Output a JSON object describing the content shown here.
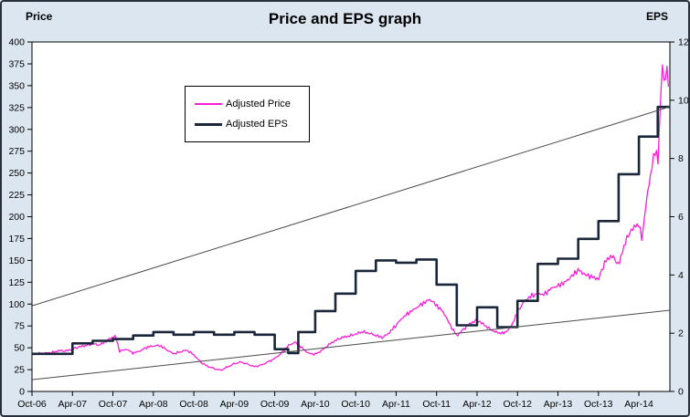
{
  "window": {
    "background": "#dce6f1",
    "plot_background": "#ffffff",
    "border_color": "#28303c"
  },
  "header": {
    "title": "Price and EPS graph",
    "left_axis_title": "Price",
    "right_axis_title": "EPS"
  },
  "legend": {
    "items": [
      {
        "label": "Adjusted Price",
        "color": "#fb1ed7",
        "thickness": 2
      },
      {
        "label": "Adjusted EPS",
        "color": "#1a2639",
        "thickness": 3
      }
    ]
  },
  "chart_data": {
    "type": "line",
    "title": "Price and EPS graph",
    "grid": false,
    "x_unit": "months since Oct-2006",
    "x_axis": {
      "labels": [
        "Oct-06",
        "Apr-07",
        "Oct-07",
        "Apr-08",
        "Oct-08",
        "Apr-09",
        "Oct-09",
        "Apr-10",
        "Oct-10",
        "Apr-11",
        "Oct-11",
        "Apr-12",
        "Oct-12",
        "Apr-13",
        "Oct-13",
        "Apr-14"
      ],
      "months_per_label": 6,
      "label_placement": "on-tick",
      "total_months": 94.6
    },
    "left_axis": {
      "title": "Price",
      "min": 0,
      "max": 400,
      "step": 25
    },
    "right_axis": {
      "title": "EPS",
      "min": 0,
      "max": 12,
      "step": 2
    },
    "series": [
      {
        "name": "Adjusted Price",
        "axis": "left",
        "style": "noisy-line",
        "color": "#fb1ed7",
        "width": 1.3,
        "noise_pct": 0.03,
        "points": [
          [
            0,
            42
          ],
          [
            1,
            43
          ],
          [
            2,
            44
          ],
          [
            3,
            45
          ],
          [
            4,
            47
          ],
          [
            5,
            46
          ],
          [
            6,
            48
          ],
          [
            7,
            51
          ],
          [
            8,
            53
          ],
          [
            9,
            55
          ],
          [
            10,
            53
          ],
          [
            11,
            57
          ],
          [
            12,
            62
          ],
          [
            12.4,
            63
          ],
          [
            13,
            46
          ],
          [
            14,
            49
          ],
          [
            15,
            44
          ],
          [
            16,
            46
          ],
          [
            17,
            50
          ],
          [
            18,
            52
          ],
          [
            19,
            53
          ],
          [
            20,
            48
          ],
          [
            21,
            43
          ],
          [
            22,
            45
          ],
          [
            23,
            47
          ],
          [
            24,
            42
          ],
          [
            25,
            34
          ],
          [
            26,
            29
          ],
          [
            27,
            26
          ],
          [
            28,
            24
          ],
          [
            29,
            28
          ],
          [
            30,
            32
          ],
          [
            31,
            34
          ],
          [
            32,
            31
          ],
          [
            33,
            28
          ],
          [
            34,
            30
          ],
          [
            35,
            34
          ],
          [
            36,
            38
          ],
          [
            37,
            44
          ],
          [
            38,
            52
          ],
          [
            39,
            56
          ],
          [
            40,
            50
          ],
          [
            41,
            44
          ],
          [
            42,
            43
          ],
          [
            43,
            47
          ],
          [
            44,
            53
          ],
          [
            45,
            58
          ],
          [
            46,
            62
          ],
          [
            47,
            64
          ],
          [
            48,
            66
          ],
          [
            49,
            68
          ],
          [
            50,
            66
          ],
          [
            51,
            64
          ],
          [
            52,
            62
          ],
          [
            53,
            68
          ],
          [
            54,
            76
          ],
          [
            55,
            84
          ],
          [
            56,
            90
          ],
          [
            57,
            96
          ],
          [
            58,
            102
          ],
          [
            59,
            106
          ],
          [
            60,
            98
          ],
          [
            61,
            90
          ],
          [
            62,
            76
          ],
          [
            63,
            64
          ],
          [
            64,
            72
          ],
          [
            65,
            78
          ],
          [
            66,
            81
          ],
          [
            67,
            76
          ],
          [
            68,
            71
          ],
          [
            69,
            68
          ],
          [
            70,
            67
          ],
          [
            71,
            73
          ],
          [
            72,
            90
          ],
          [
            73,
            103
          ],
          [
            74,
            110
          ],
          [
            75,
            113
          ],
          [
            76,
            111
          ],
          [
            77,
            117
          ],
          [
            78,
            120
          ],
          [
            79,
            125
          ],
          [
            80,
            133
          ],
          [
            81,
            140
          ],
          [
            82,
            133
          ],
          [
            83,
            130
          ],
          [
            84,
            128
          ],
          [
            85,
            150
          ],
          [
            86,
            157
          ],
          [
            87,
            145
          ],
          [
            88,
            170
          ],
          [
            89,
            185
          ],
          [
            90,
            192
          ],
          [
            90.5,
            174
          ],
          [
            91,
            215
          ],
          [
            92,
            262
          ],
          [
            92.5,
            280
          ],
          [
            92.8,
            255
          ],
          [
            93.2,
            330
          ],
          [
            93.5,
            372
          ],
          [
            93.8,
            345
          ],
          [
            94.1,
            368
          ],
          [
            94.4,
            352
          ]
        ]
      },
      {
        "name": "Adjusted EPS",
        "axis": "right",
        "style": "step",
        "color": "#1a2639",
        "width": 2.6,
        "end_month": 94.6,
        "points": [
          [
            0,
            1.29
          ],
          [
            6,
            1.65
          ],
          [
            9,
            1.74
          ],
          [
            12,
            1.8
          ],
          [
            15,
            1.92
          ],
          [
            18,
            2.04
          ],
          [
            21,
            1.95
          ],
          [
            24,
            2.04
          ],
          [
            27,
            1.95
          ],
          [
            30,
            2.04
          ],
          [
            33,
            1.95
          ],
          [
            36,
            1.45
          ],
          [
            38,
            1.32
          ],
          [
            39.5,
            2.04
          ],
          [
            42,
            2.76
          ],
          [
            45,
            3.36
          ],
          [
            48,
            4.14
          ],
          [
            51,
            4.5
          ],
          [
            54,
            4.42
          ],
          [
            57,
            4.53
          ],
          [
            60,
            3.67
          ],
          [
            63,
            2.27
          ],
          [
            66,
            2.89
          ],
          [
            69,
            2.21
          ],
          [
            72,
            3.11
          ],
          [
            75,
            4.38
          ],
          [
            78,
            4.56
          ],
          [
            81,
            5.24
          ],
          [
            84,
            5.85
          ],
          [
            87,
            7.46
          ],
          [
            90,
            8.75
          ],
          [
            92.8,
            9.77
          ]
        ]
      },
      {
        "name": "Trendline upper",
        "axis": "left",
        "style": "straight",
        "color": "#4a4a4a",
        "width": 1,
        "points": [
          [
            0,
            98
          ],
          [
            94.6,
            326
          ]
        ]
      },
      {
        "name": "Trendline lower",
        "axis": "left",
        "style": "straight",
        "color": "#4a4a4a",
        "width": 1,
        "points": [
          [
            0,
            13.5
          ],
          [
            94.6,
            93
          ]
        ]
      }
    ]
  }
}
